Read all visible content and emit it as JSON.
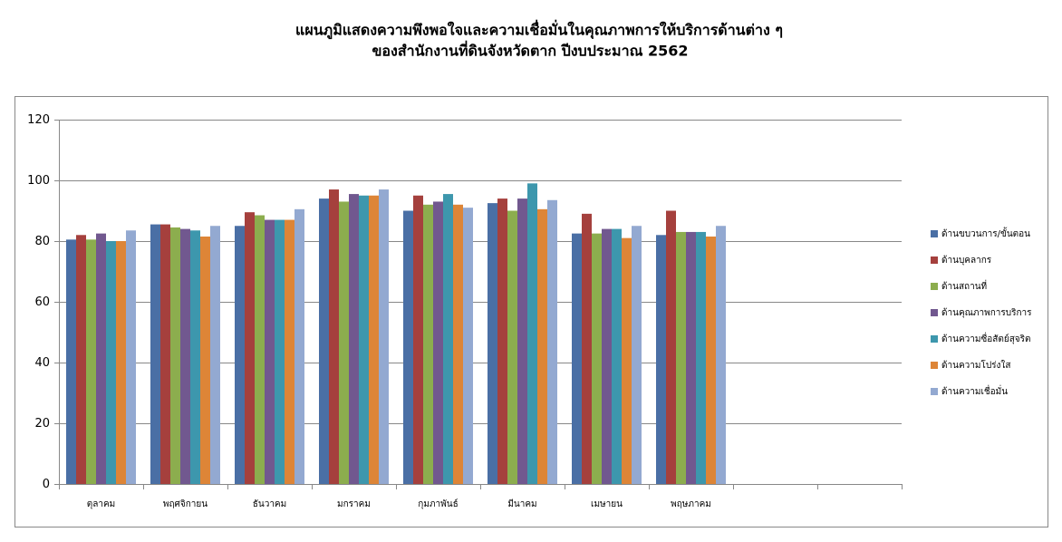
{
  "chart_data": {
    "type": "bar",
    "title": [
      "แผนภูมิแสดงความพึงพอใจและความเชื่อมั่นในคุณภาพการให้บริการด้านต่าง ๆ",
      "ของสำนักงานที่ดินจังหวัดตาก ปีงบประมาณ 2562"
    ],
    "categories": [
      "ตุลาคม",
      "พฤศจิกายน",
      "ธันวาคม",
      "มกราคม",
      "กุมภาพันธ์",
      "มีนาคม",
      "เมษายน",
      "พฤษภาคม",
      null,
      null
    ],
    "series": [
      {
        "name": "ด้านขบวนการ/ขั้นตอน",
        "color": "#4a6fa5",
        "values": [
          80.5,
          85.5,
          85,
          94,
          90,
          92.5,
          82.5,
          82,
          null,
          null
        ]
      },
      {
        "name": "ด้านบุคลากร",
        "color": "#a5403d",
        "values": [
          82,
          85.5,
          89.5,
          97,
          95,
          94,
          89,
          90,
          null,
          null
        ]
      },
      {
        "name": "ด้านสถานที่",
        "color": "#8cad4e",
        "values": [
          80.5,
          84.5,
          88.5,
          93,
          92,
          90,
          82.5,
          83,
          null,
          null
        ]
      },
      {
        "name": "ด้านคุณภาพการบริการ",
        "color": "#71588f",
        "values": [
          82.5,
          84,
          87,
          95.5,
          93,
          94,
          84,
          83,
          null,
          null
        ]
      },
      {
        "name": "ด้านความซื่อสัตย์สุจริต",
        "color": "#3d97ad",
        "values": [
          80,
          83.5,
          87,
          95,
          95.5,
          99,
          84,
          83,
          null,
          null
        ]
      },
      {
        "name": "ด้านความโปร่งใส",
        "color": "#dd8537",
        "values": [
          80,
          81.5,
          87,
          95,
          92,
          90.5,
          81,
          81.5,
          null,
          null
        ]
      },
      {
        "name": "ด้านความเชื่อมั่น",
        "color": "#93a9d1",
        "values": [
          83.5,
          85,
          90.5,
          97,
          91,
          93.5,
          85,
          85,
          null,
          null
        ]
      }
    ],
    "ylim": [
      0,
      120
    ],
    "yticks": [
      0,
      20,
      40,
      60,
      80,
      100,
      120
    ],
    "grid": true,
    "legend": "right"
  }
}
